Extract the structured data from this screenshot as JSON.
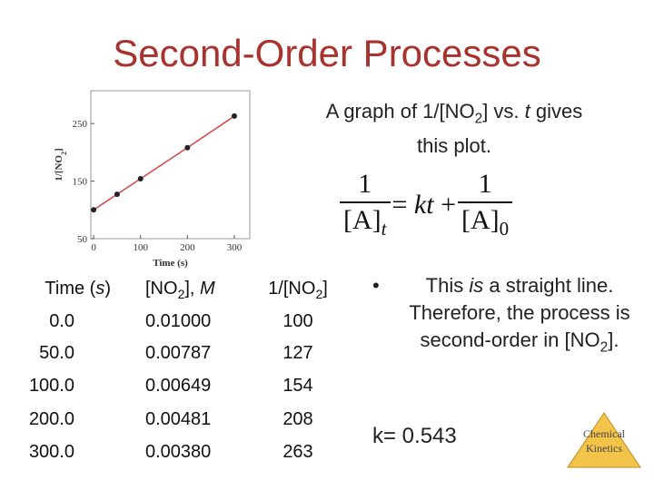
{
  "title": "Second-Order Processes",
  "caption": [
    {
      "t": "A graph of 1/[NO"
    },
    {
      "t": "2",
      "sub": true
    },
    {
      "t": "] vs. "
    },
    {
      "t": "t",
      "i": true
    },
    {
      "t": " gives this plot."
    }
  ],
  "equation": {
    "lhs": {
      "num": "1",
      "den": [
        {
          "t": "[A]"
        },
        {
          "t": "t",
          "i": true,
          "sub": true
        }
      ]
    },
    "mid": [
      {
        "t": "= "
      },
      {
        "t": "kt",
        "i": true
      },
      {
        "t": " +"
      }
    ],
    "rhs": {
      "num": "1",
      "den": [
        {
          "t": "[A]"
        },
        {
          "t": "0",
          "sub": true
        }
      ]
    }
  },
  "chart_data": {
    "type": "scatter",
    "x": [
      0,
      50,
      100,
      200,
      300
    ],
    "series": [
      {
        "color": "#222222",
        "line_color": "#d04545",
        "values": [
          100,
          127,
          154,
          208,
          263
        ]
      }
    ],
    "xlim": [
      -6,
      333
    ],
    "ylim": [
      50,
      307
    ],
    "xticks": [
      0,
      100,
      200,
      300
    ],
    "yticks": [
      50,
      150,
      250
    ],
    "xlabel": "Time (s)",
    "ylabel": [
      {
        "t": "1/[NO"
      },
      {
        "t": "2",
        "sub": true
      },
      {
        "t": "]"
      }
    ]
  },
  "table": {
    "header": [
      [
        {
          "t": "Time ("
        },
        {
          "t": "s",
          "i": true
        },
        {
          "t": ")"
        }
      ],
      [
        {
          "t": "[NO"
        },
        {
          "t": "2",
          "sub": true
        },
        {
          "t": "], "
        },
        {
          "t": "M",
          "i": true
        }
      ],
      [
        {
          "t": "1/[NO"
        },
        {
          "t": "2",
          "sub": true
        },
        {
          "t": "]"
        }
      ]
    ],
    "rows": [
      [
        "0.0",
        "0.01000",
        "100"
      ],
      [
        "50.0",
        "0.00787",
        "127"
      ],
      [
        "100.0",
        "0.00649",
        "154"
      ],
      [
        "200.0",
        "0.00481",
        "208"
      ],
      [
        "300.0",
        "0.00380",
        "263"
      ]
    ]
  },
  "bullet": [
    {
      "t": "This "
    },
    {
      "t": "is",
      "i": true
    },
    {
      "t": " a straight line. Therefore, the process is second-order in [NO"
    },
    {
      "t": "2",
      "sub": true
    },
    {
      "t": "]."
    }
  ],
  "rate_constant": "k= 0.543",
  "logo": [
    "Chemical",
    "Kinetics"
  ]
}
